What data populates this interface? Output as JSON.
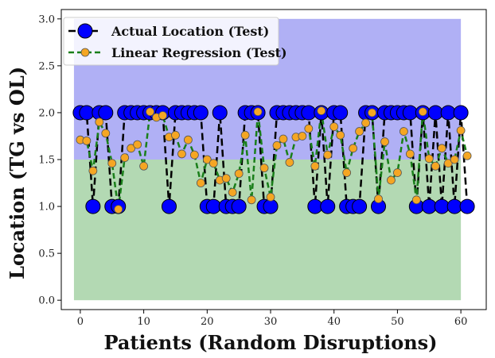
{
  "chart_data": {
    "type": "line",
    "xlabel": "Patients (Random Disruptions)",
    "ylabel": "Location (TG vs OL)",
    "xlim": [
      -3,
      64
    ],
    "ylim": [
      -0.1,
      3.1
    ],
    "xticks": [
      0,
      10,
      20,
      30,
      40,
      50,
      60
    ],
    "yticks": [
      0.0,
      0.5,
      1.0,
      1.5,
      2.0,
      2.5,
      3.0
    ],
    "ytick_labels": [
      "0.0",
      "0.5",
      "1.0",
      "1.5",
      "2.0",
      "2.5",
      "3.0"
    ],
    "bands": [
      {
        "y0": 0.0,
        "y1": 1.5,
        "x0": -1,
        "x1": 60,
        "color": "#b3d9b3"
      },
      {
        "y0": 1.5,
        "y1": 3.0,
        "x0": -1,
        "x1": 60,
        "color": "#b0b0f5"
      }
    ],
    "legend_position": "top-left",
    "series": [
      {
        "name": "Actual Location (Test)",
        "color": "#0000ff",
        "line_color": "#000000",
        "x": [
          0,
          1,
          2,
          3,
          4,
          5,
          6,
          7,
          8,
          9,
          10,
          11,
          12,
          13,
          14,
          15,
          16,
          17,
          18,
          19,
          20,
          21,
          22,
          23,
          24,
          25,
          26,
          27,
          28,
          29,
          30,
          31,
          32,
          33,
          34,
          35,
          36,
          37,
          38,
          39,
          40,
          41,
          42,
          43,
          44,
          45,
          46,
          47,
          48,
          49,
          50,
          51,
          52,
          53,
          54,
          55,
          56,
          57,
          58,
          59,
          60,
          61
        ],
        "values": [
          2,
          2,
          1,
          2,
          2,
          1,
          1,
          2,
          2,
          2,
          2,
          2,
          2,
          2,
          1,
          2,
          2,
          2,
          2,
          2,
          1,
          1,
          2,
          1,
          1,
          1,
          2,
          2,
          2,
          1,
          1,
          2,
          2,
          2,
          2,
          2,
          2,
          1,
          2,
          1,
          2,
          2,
          1,
          1,
          1,
          2,
          2,
          1,
          2,
          2,
          2,
          2,
          2,
          1,
          2,
          1,
          2,
          1,
          2,
          1,
          2,
          1
        ]
      },
      {
        "name": "Linear Regression (Test)",
        "color": "#f5a623",
        "line_color": "#1a7f1a",
        "x": [
          0,
          1,
          2,
          3,
          4,
          5,
          6,
          7,
          8,
          9,
          10,
          11,
          12,
          13,
          14,
          15,
          16,
          17,
          18,
          19,
          20,
          21,
          22,
          23,
          24,
          25,
          26,
          27,
          28,
          29,
          30,
          31,
          32,
          33,
          34,
          35,
          36,
          37,
          38,
          39,
          40,
          41,
          42,
          43,
          44,
          45,
          46,
          47,
          48,
          49,
          50,
          51,
          52,
          53,
          54,
          55,
          56,
          57,
          58,
          59,
          60,
          61
        ],
        "values": [
          1.71,
          1.7,
          1.38,
          1.9,
          1.78,
          1.46,
          0.97,
          1.52,
          1.62,
          1.66,
          1.43,
          2.01,
          1.95,
          1.97,
          1.74,
          1.76,
          1.56,
          1.71,
          1.55,
          1.25,
          1.5,
          1.46,
          1.28,
          1.3,
          1.15,
          1.35,
          1.76,
          1.07,
          2.01,
          1.41,
          1.1,
          1.65,
          1.72,
          1.47,
          1.74,
          1.75,
          1.83,
          1.43,
          2.02,
          1.55,
          1.85,
          1.76,
          1.36,
          1.62,
          1.8,
          1.89,
          2.0,
          1.08,
          1.69,
          1.28,
          1.36,
          1.8,
          1.56,
          1.07,
          2.01,
          1.51,
          1.43,
          1.62,
          1.46,
          1.5,
          1.81,
          1.54
        ]
      }
    ]
  }
}
